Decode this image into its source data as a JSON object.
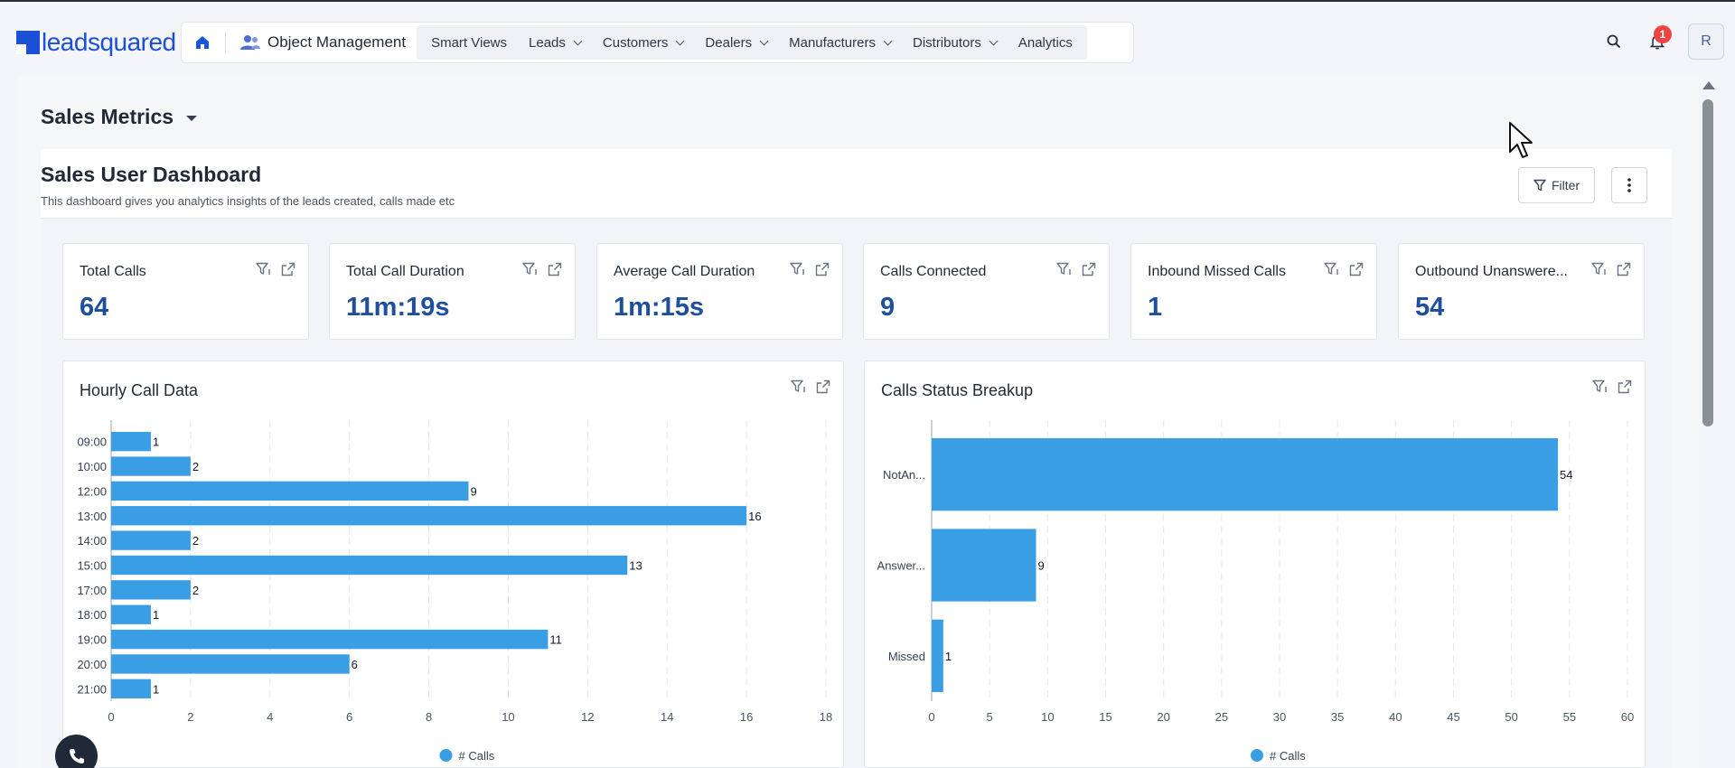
{
  "brand": {
    "logo_text": "leadsquared",
    "color": "#1a4fd6"
  },
  "nav": {
    "home_icon": "home-icon",
    "object_management": "Object Management",
    "items": [
      {
        "label": "Smart Views",
        "dropdown": false
      },
      {
        "label": "Leads",
        "dropdown": true
      },
      {
        "label": "Customers",
        "dropdown": true
      },
      {
        "label": "Dealers",
        "dropdown": true
      },
      {
        "label": "Manufacturers",
        "dropdown": true
      },
      {
        "label": "Distributors",
        "dropdown": true
      },
      {
        "label": "Analytics",
        "dropdown": false
      }
    ]
  },
  "header_right": {
    "notification_count": "1",
    "avatar_initial": "R"
  },
  "page": {
    "title": "Sales Metrics"
  },
  "dashboard": {
    "title": "Sales User Dashboard",
    "description": "This dashboard gives you analytics insights of the leads created, calls made etc",
    "filter_label": "Filter"
  },
  "kpis": [
    {
      "label": "Total Calls",
      "value": "64"
    },
    {
      "label": "Total Call Duration",
      "value": "11m:19s"
    },
    {
      "label": "Average Call Duration",
      "value": "1m:15s"
    },
    {
      "label": "Calls Connected",
      "value": "9"
    },
    {
      "label": "Inbound Missed Calls",
      "value": "1"
    },
    {
      "label": "Outbound Unanswere...",
      "value": "54"
    }
  ],
  "colors": {
    "bar": "#3a9ee4",
    "kpi_value": "#1e4f9c"
  },
  "chart_data": [
    {
      "type": "bar",
      "orientation": "horizontal",
      "title": "Hourly Call Data",
      "categories": [
        "09:00",
        "10:00",
        "12:00",
        "13:00",
        "14:00",
        "15:00",
        "17:00",
        "18:00",
        "19:00",
        "20:00",
        "21:00"
      ],
      "series": [
        {
          "name": "# Calls",
          "values": [
            1,
            2,
            9,
            16,
            2,
            13,
            2,
            1,
            11,
            6,
            1
          ]
        }
      ],
      "xlim": [
        0,
        18
      ],
      "xticks": [
        "0",
        "2",
        "4",
        "6",
        "8",
        "10",
        "12",
        "14",
        "16",
        "18"
      ],
      "grid": true,
      "legend": "bottom"
    },
    {
      "type": "bar",
      "orientation": "horizontal",
      "title": "Calls Status Breakup",
      "categories": [
        "NotAn...",
        "Answer...",
        "Missed"
      ],
      "series": [
        {
          "name": "# Calls",
          "values": [
            54,
            9,
            1
          ]
        }
      ],
      "xlim": [
        0,
        60
      ],
      "xticks": [
        "0",
        "5",
        "10",
        "15",
        "20",
        "25",
        "30",
        "35",
        "40",
        "45",
        "50",
        "55",
        "60"
      ],
      "grid": true,
      "legend": "bottom"
    }
  ]
}
